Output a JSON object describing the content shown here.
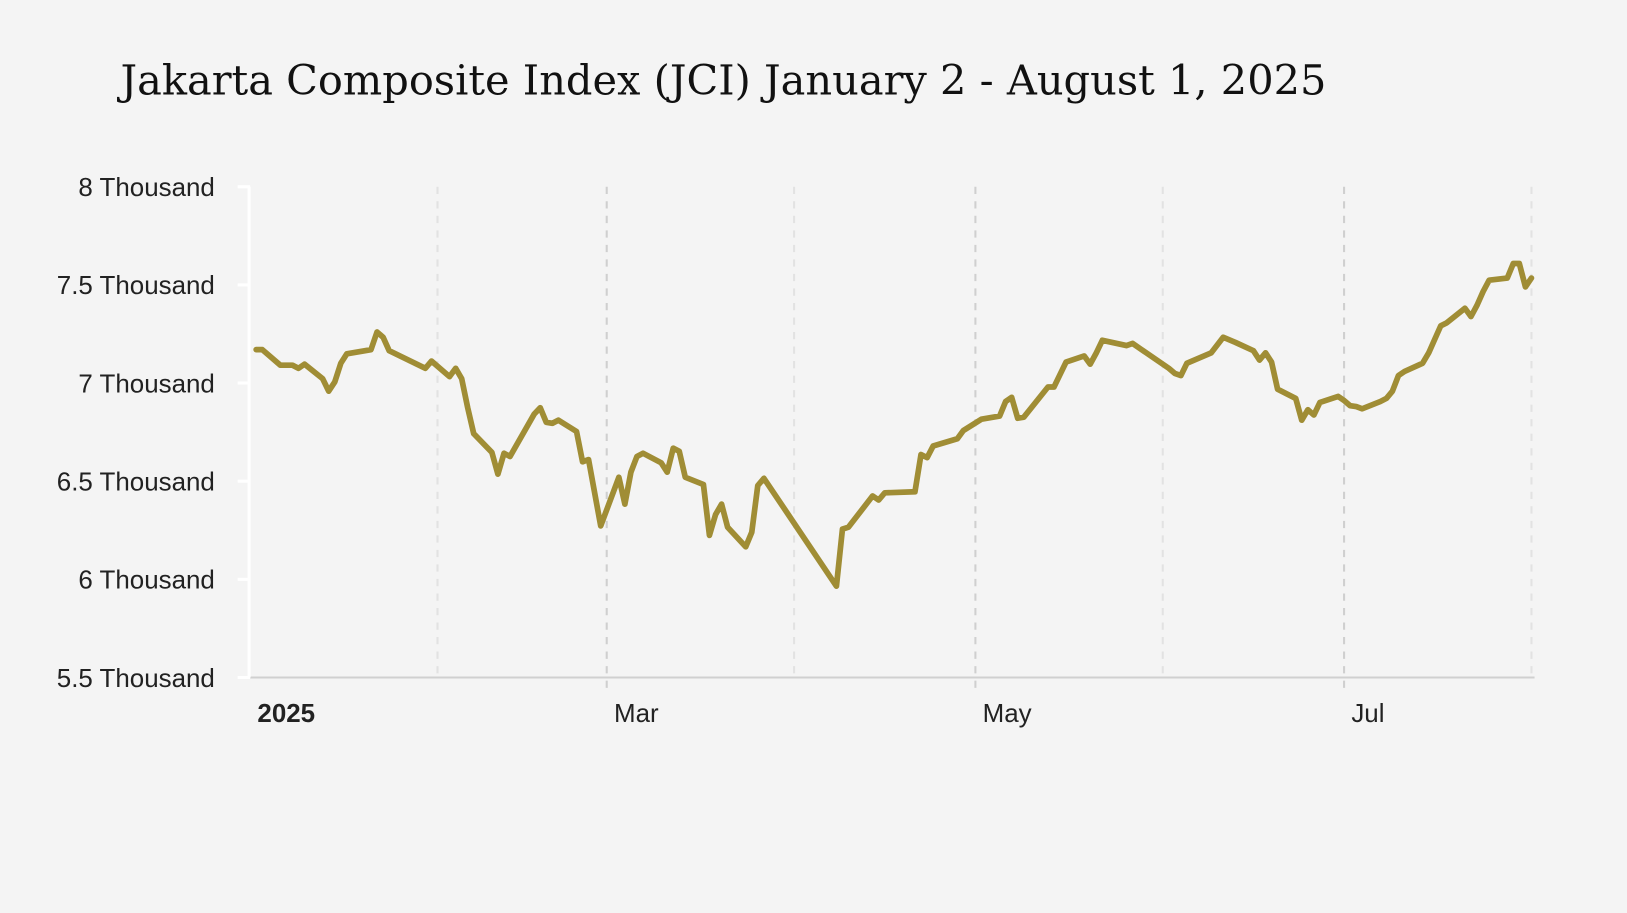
{
  "chart_data": {
    "type": "line",
    "title": "Jakarta Composite Index (JCI) January 2 - August 1, 2025",
    "xlabel": "",
    "ylabel": "",
    "ylim": [
      5500,
      8000
    ],
    "xlim": [
      "2025-01-01",
      "2025-08-01"
    ],
    "grid": "vertical dashed at month starts",
    "line_color": "#a08d35",
    "y_ticks": [
      {
        "value": 8000,
        "label": "8 Thousand"
      },
      {
        "value": 7500,
        "label": "7.5 Thousand"
      },
      {
        "value": 7000,
        "label": "7 Thousand"
      },
      {
        "value": 6500,
        "label": "6.5 Thousand"
      },
      {
        "value": 6000,
        "label": "6 Thousand"
      },
      {
        "value": 5500,
        "label": "5.5 Thousand"
      }
    ],
    "x_ticks": [
      {
        "date": "2025-01-01",
        "label": "2025",
        "bold": true
      },
      {
        "date": "2025-03-01",
        "label": "Mar"
      },
      {
        "date": "2025-05-01",
        "label": "May"
      },
      {
        "date": "2025-07-01",
        "label": "Jul"
      }
    ],
    "minor_gridlines": [
      "2025-02-01",
      "2025-04-01",
      "2025-06-01",
      "2025-08-01"
    ],
    "points": [
      [
        "2025-01-02",
        7170
      ],
      [
        "2025-01-03",
        7170
      ],
      [
        "2025-01-06",
        7091
      ],
      [
        "2025-01-08",
        7091
      ],
      [
        "2025-01-09",
        7075
      ],
      [
        "2025-01-10",
        7096
      ],
      [
        "2025-01-13",
        7022
      ],
      [
        "2025-01-14",
        6959
      ],
      [
        "2025-01-15",
        7006
      ],
      [
        "2025-01-16",
        7101
      ],
      [
        "2025-01-17",
        7149
      ],
      [
        "2025-01-21",
        7170
      ],
      [
        "2025-01-22",
        7260
      ],
      [
        "2025-01-23",
        7233
      ],
      [
        "2025-01-24",
        7165
      ],
      [
        "2025-01-30",
        7075
      ],
      [
        "2025-01-31",
        7112
      ],
      [
        "2025-02-03",
        7033
      ],
      [
        "2025-02-04",
        7075
      ],
      [
        "2025-02-05",
        7022
      ],
      [
        "2025-02-06",
        6874
      ],
      [
        "2025-02-07",
        6742
      ],
      [
        "2025-02-10",
        6647
      ],
      [
        "2025-02-11",
        6536
      ],
      [
        "2025-02-12",
        6642
      ],
      [
        "2025-02-13",
        6626
      ],
      [
        "2025-02-17",
        6842
      ],
      [
        "2025-02-18",
        6874
      ],
      [
        "2025-02-19",
        6800
      ],
      [
        "2025-02-20",
        6795
      ],
      [
        "2025-02-21",
        6811
      ],
      [
        "2025-02-24",
        6753
      ],
      [
        "2025-02-25",
        6599
      ],
      [
        "2025-02-26",
        6610
      ],
      [
        "2025-02-28",
        6272
      ],
      [
        "2025-03-03",
        6520
      ],
      [
        "2025-03-04",
        6383
      ],
      [
        "2025-03-05",
        6546
      ],
      [
        "2025-03-06",
        6626
      ],
      [
        "2025-03-07",
        6642
      ],
      [
        "2025-03-10",
        6594
      ],
      [
        "2025-03-11",
        6546
      ],
      [
        "2025-03-12",
        6668
      ],
      [
        "2025-03-13",
        6652
      ],
      [
        "2025-03-14",
        6520
      ],
      [
        "2025-03-17",
        6483
      ],
      [
        "2025-03-18",
        6224
      ],
      [
        "2025-03-19",
        6330
      ],
      [
        "2025-03-20",
        6383
      ],
      [
        "2025-03-21",
        6266
      ],
      [
        "2025-03-24",
        6166
      ],
      [
        "2025-03-25",
        6240
      ],
      [
        "2025-03-26",
        6478
      ],
      [
        "2025-03-27",
        6515
      ],
      [
        "2025-04-08",
        5965
      ],
      [
        "2025-04-09",
        6256
      ],
      [
        "2025-04-10",
        6266
      ],
      [
        "2025-04-14",
        6425
      ],
      [
        "2025-04-15",
        6404
      ],
      [
        "2025-04-16",
        6441
      ],
      [
        "2025-04-21",
        6446
      ],
      [
        "2025-04-22",
        6636
      ],
      [
        "2025-04-23",
        6620
      ],
      [
        "2025-04-24",
        6679
      ],
      [
        "2025-04-28",
        6716
      ],
      [
        "2025-04-29",
        6758
      ],
      [
        "2025-05-02",
        6816
      ],
      [
        "2025-05-05",
        6832
      ],
      [
        "2025-05-06",
        6906
      ],
      [
        "2025-05-07",
        6927
      ],
      [
        "2025-05-08",
        6821
      ],
      [
        "2025-05-09",
        6826
      ],
      [
        "2025-05-13",
        6980
      ],
      [
        "2025-05-14",
        6980
      ],
      [
        "2025-05-16",
        7107
      ],
      [
        "2025-05-19",
        7138
      ],
      [
        "2025-05-20",
        7096
      ],
      [
        "2025-05-21",
        7154
      ],
      [
        "2025-05-22",
        7218
      ],
      [
        "2025-05-26",
        7191
      ],
      [
        "2025-05-27",
        7202
      ],
      [
        "2025-06-02",
        7075
      ],
      [
        "2025-06-03",
        7049
      ],
      [
        "2025-06-04",
        7038
      ],
      [
        "2025-06-05",
        7101
      ],
      [
        "2025-06-09",
        7154
      ],
      [
        "2025-06-11",
        7233
      ],
      [
        "2025-06-13",
        7207
      ],
      [
        "2025-06-16",
        7165
      ],
      [
        "2025-06-17",
        7117
      ],
      [
        "2025-06-18",
        7154
      ],
      [
        "2025-06-19",
        7107
      ],
      [
        "2025-06-20",
        6969
      ],
      [
        "2025-06-23",
        6922
      ],
      [
        "2025-06-24",
        6811
      ],
      [
        "2025-06-25",
        6864
      ],
      [
        "2025-06-26",
        6837
      ],
      [
        "2025-06-27",
        6901
      ],
      [
        "2025-06-30",
        6932
      ],
      [
        "2025-07-01",
        6911
      ],
      [
        "2025-07-02",
        6885
      ],
      [
        "2025-07-03",
        6880
      ],
      [
        "2025-07-04",
        6869
      ],
      [
        "2025-07-07",
        6906
      ],
      [
        "2025-07-08",
        6922
      ],
      [
        "2025-07-09",
        6959
      ],
      [
        "2025-07-10",
        7038
      ],
      [
        "2025-07-11",
        7059
      ],
      [
        "2025-07-14",
        7101
      ],
      [
        "2025-07-15",
        7154
      ],
      [
        "2025-07-16",
        7223
      ],
      [
        "2025-07-17",
        7292
      ],
      [
        "2025-07-18",
        7307
      ],
      [
        "2025-07-21",
        7381
      ],
      [
        "2025-07-22",
        7339
      ],
      [
        "2025-07-23",
        7397
      ],
      [
        "2025-07-24",
        7466
      ],
      [
        "2025-07-25",
        7524
      ],
      [
        "2025-07-28",
        7535
      ],
      [
        "2025-07-29",
        7609
      ],
      [
        "2025-07-30",
        7609
      ],
      [
        "2025-07-31",
        7490
      ],
      [
        "2025-08-01",
        7535
      ]
    ]
  }
}
